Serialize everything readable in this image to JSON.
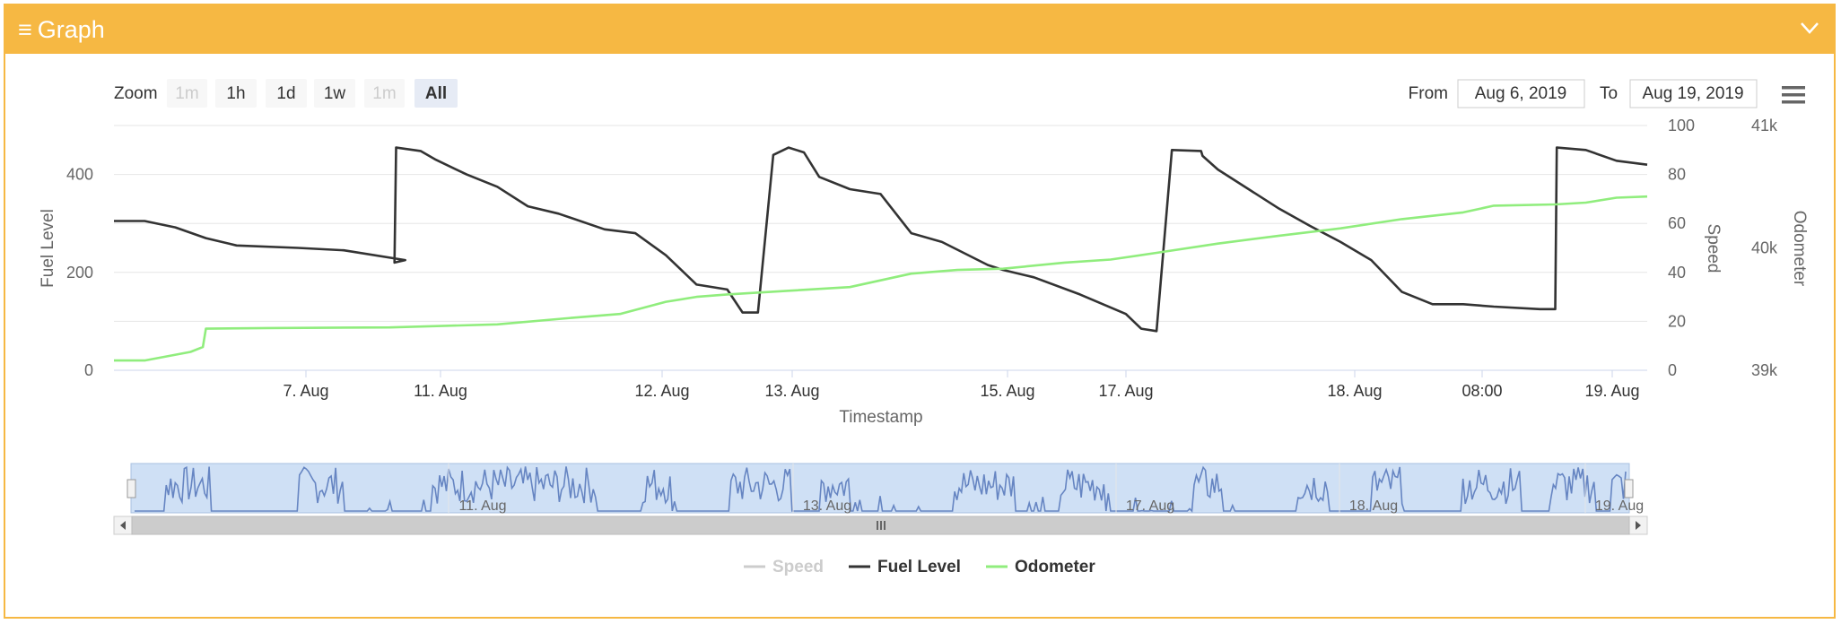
{
  "panel": {
    "title": "Graph",
    "menu_icon": "hamburger-icon",
    "collapse_icon": "chevron-down-icon"
  },
  "range_selector": {
    "zoom_label": "Zoom",
    "buttons": [
      {
        "label": "1m",
        "state": "disabled"
      },
      {
        "label": "1h",
        "state": "normal"
      },
      {
        "label": "1d",
        "state": "normal"
      },
      {
        "label": "1w",
        "state": "normal"
      },
      {
        "label": "1m",
        "state": "disabled"
      },
      {
        "label": "All",
        "state": "selected"
      }
    ]
  },
  "date_inputs": {
    "from_label": "From",
    "from_value": "Aug 6, 2019",
    "to_label": "To",
    "to_value": "Aug 19, 2019"
  },
  "export_menu": {
    "icon": "hamburger-icon"
  },
  "chart_data": {
    "type": "line",
    "xlabel": "Timestamp",
    "x_ticks": [
      "7. Aug",
      "11. Aug",
      "12. Aug",
      "13. Aug",
      "15. Aug",
      "17. Aug",
      "18. Aug",
      "08:00",
      "19. Aug"
    ],
    "axes": {
      "fuel": {
        "label": "Fuel Level",
        "ticks": [
          "0",
          "200",
          "400"
        ],
        "ylim": [
          0,
          500
        ]
      },
      "speed": {
        "label": "Speed",
        "ticks": [
          "0",
          "20",
          "40",
          "60",
          "80",
          "100"
        ],
        "ylim": [
          0,
          100
        ]
      },
      "odometer": {
        "label": "Odometer",
        "ticks": [
          "39k",
          "40k",
          "41k"
        ],
        "ylim": [
          39000,
          41000
        ]
      }
    },
    "series": [
      {
        "name": "Speed",
        "axis": "speed",
        "visible": false,
        "color": "#cccccc",
        "x": [],
        "values": []
      },
      {
        "name": "Fuel Level",
        "axis": "fuel",
        "visible": true,
        "color": "#333333",
        "x": [
          0,
          0.02,
          0.04,
          0.06,
          0.08,
          0.12,
          0.15,
          0.19,
          0.183,
          0.184,
          0.2,
          0.21,
          0.23,
          0.25,
          0.27,
          0.29,
          0.32,
          0.34,
          0.36,
          0.38,
          0.4,
          0.41,
          0.42,
          0.43,
          0.44,
          0.45,
          0.46,
          0.48,
          0.5,
          0.52,
          0.54,
          0.57,
          0.58,
          0.6,
          0.63,
          0.66,
          0.67,
          0.68,
          0.69,
          0.709,
          0.71,
          0.72,
          0.74,
          0.76,
          0.78,
          0.8,
          0.82,
          0.84,
          0.86,
          0.88,
          0.9,
          0.93,
          0.94,
          0.941,
          0.96,
          0.98,
          1.0
        ],
        "values": [
          305,
          305,
          292,
          270,
          255,
          250,
          245,
          225,
          220,
          455,
          448,
          430,
          400,
          375,
          335,
          320,
          288,
          280,
          235,
          175,
          165,
          118,
          118,
          440,
          455,
          445,
          395,
          370,
          360,
          280,
          262,
          215,
          205,
          190,
          155,
          115,
          85,
          80,
          450,
          448,
          438,
          410,
          370,
          330,
          295,
          262,
          225,
          160,
          135,
          135,
          130,
          125,
          125,
          455,
          450,
          428,
          420
        ]
      },
      {
        "name": "Odometer",
        "axis": "odometer",
        "visible": true,
        "color": "#90ed7d",
        "x": [
          0,
          0.02,
          0.05,
          0.058,
          0.06,
          0.1,
          0.18,
          0.25,
          0.3,
          0.33,
          0.36,
          0.38,
          0.4,
          0.44,
          0.48,
          0.52,
          0.55,
          0.58,
          0.62,
          0.65,
          0.68,
          0.72,
          0.76,
          0.8,
          0.84,
          0.88,
          0.9,
          0.94,
          0.96,
          0.98,
          1.0
        ],
        "values": [
          39080,
          39080,
          39150,
          39190,
          39340,
          39345,
          39350,
          39375,
          39430,
          39460,
          39560,
          39600,
          39620,
          39650,
          39680,
          39790,
          39820,
          39830,
          39880,
          39905,
          39960,
          40035,
          40100,
          40160,
          40235,
          40290,
          40345,
          40355,
          40370,
          40410,
          40420
        ]
      }
    ],
    "navigator": {
      "x_ticks": [
        "11. Aug",
        "13. Aug",
        "17. Aug",
        "18. Aug",
        "19. Aug"
      ],
      "window": [
        0,
        1
      ]
    },
    "legend": {
      "placement": "bottom-center",
      "items": [
        "Speed",
        "Fuel Level",
        "Odometer"
      ]
    },
    "grid": true
  },
  "colors": {
    "accent": "#f6b843",
    "fuel": "#333333",
    "odometer": "#90ed7d",
    "speed_hidden": "#cccccc",
    "navigator_fill": "#6685c2"
  }
}
